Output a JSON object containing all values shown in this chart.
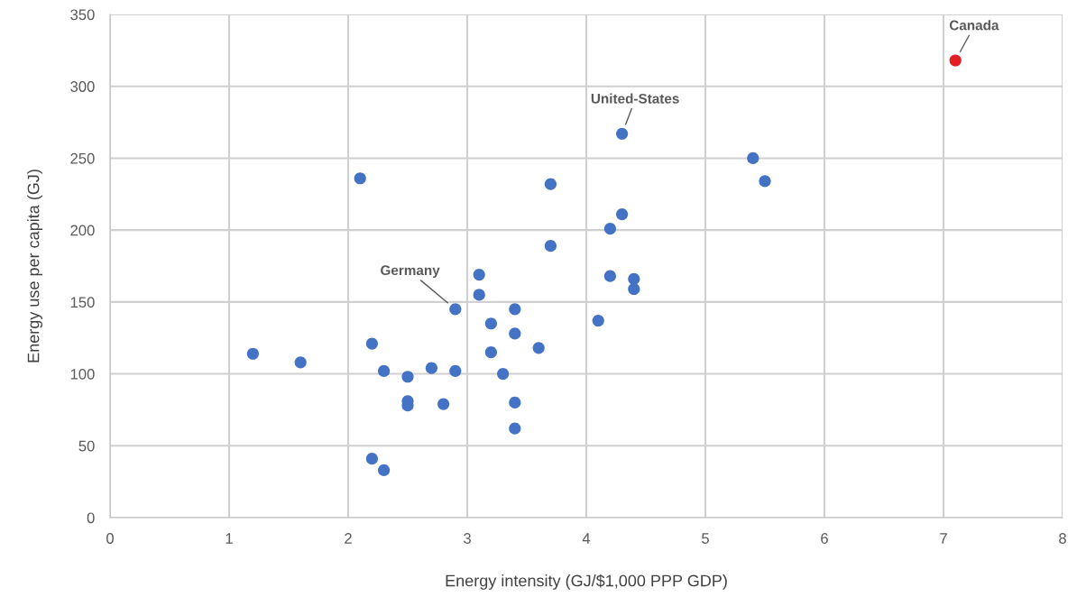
{
  "chart_data": {
    "type": "scatter",
    "xlabel": "Energy intensity (GJ/$1,000 PPP GDP)",
    "ylabel": "Energy use per capita (GJ)",
    "xlim": [
      0,
      8
    ],
    "xticks": [
      0,
      1,
      2,
      3,
      4,
      5,
      6,
      7,
      8
    ],
    "ylim": [
      0,
      350
    ],
    "yticks": [
      0,
      50,
      100,
      150,
      200,
      250,
      300,
      350
    ],
    "grid": true,
    "marker": "circle",
    "series": [
      {
        "color": "#4472c4",
        "x": [
          1.2,
          1.6,
          2.1,
          2.2,
          2.3,
          2.2,
          2.3,
          2.5,
          2.5,
          2.5,
          2.7,
          2.8,
          2.9,
          2.9,
          3.1,
          3.1,
          3.2,
          3.2,
          3.3,
          3.4,
          3.4,
          3.4,
          3.4,
          3.6,
          3.7,
          3.7,
          4.1,
          4.2,
          4.2,
          4.3,
          4.3,
          4.4,
          4.4,
          5.4,
          5.5
        ],
        "values": [
          114,
          108,
          236,
          121,
          102,
          41,
          33,
          98,
          81,
          78,
          104,
          79,
          145,
          102,
          169,
          155,
          135,
          115,
          100,
          145,
          128,
          80,
          62,
          118,
          232,
          189,
          137,
          201,
          168,
          267,
          211,
          166,
          159,
          250,
          234
        ]
      },
      {
        "color": "#e31e24",
        "x": [
          7.1
        ],
        "values": [
          318
        ]
      }
    ],
    "annotations": [
      {
        "text": "Germany",
        "x": 2.9,
        "y": 145
      },
      {
        "text": "United-States",
        "x": 4.3,
        "y": 267
      },
      {
        "text": "Canada",
        "x": 7.1,
        "y": 318
      }
    ]
  }
}
